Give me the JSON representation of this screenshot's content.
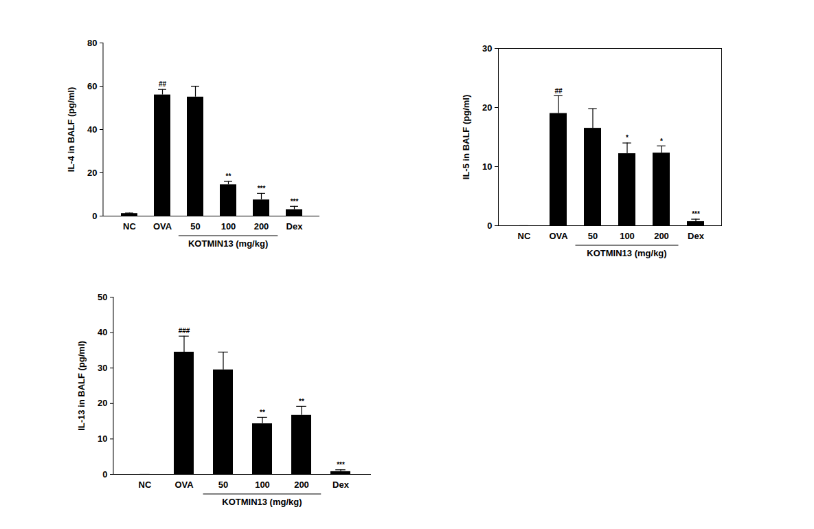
{
  "chart_data": [
    {
      "type": "bar",
      "y_label": "IL-4 in BALF (pg/ml)",
      "categories": [
        "NC",
        "OVA",
        "50",
        "100",
        "200",
        "Dex"
      ],
      "values": [
        1.2,
        56,
        55,
        14.5,
        7.5,
        3
      ],
      "errors": [
        0.2,
        2.5,
        5,
        1.5,
        3,
        1.5
      ],
      "significance": [
        null,
        "##",
        null,
        "**",
        "***",
        "***"
      ],
      "group": {
        "label": "KOTMIN13 (mg/kg)",
        "categories": [
          "50",
          "100",
          "200"
        ]
      },
      "color": "#000000",
      "ylim": [
        0,
        80
      ],
      "yticks": [
        0,
        20,
        40,
        60,
        80
      ]
    },
    {
      "type": "bar",
      "y_label": "IL-5 in BALF (pg/ml)",
      "categories": [
        "NC",
        "OVA",
        "50",
        "100",
        "200",
        "Dex"
      ],
      "values": [
        0,
        19,
        16.5,
        12.2,
        12.3,
        0.7
      ],
      "errors": [
        0,
        3,
        3.3,
        1.8,
        1.2,
        0.4
      ],
      "significance": [
        null,
        "##",
        null,
        "*",
        "*",
        "***"
      ],
      "group": {
        "label": "KOTMIN13 (mg/kg)",
        "categories": [
          "50",
          "100",
          "200"
        ]
      },
      "color": "#000000",
      "ylim": [
        0,
        30
      ],
      "yticks": [
        0,
        10,
        20,
        30
      ]
    },
    {
      "type": "bar",
      "y_label": "IL-13 in BALF (pg/ml)",
      "categories": [
        "NC",
        "OVA",
        "50",
        "100",
        "200",
        "Dex"
      ],
      "values": [
        0,
        34.5,
        29.5,
        14.3,
        16.7,
        0.8
      ],
      "errors": [
        0,
        4.5,
        5,
        1.8,
        2.5,
        0.5
      ],
      "significance": [
        null,
        "###",
        null,
        "**",
        "**",
        "***"
      ],
      "group": {
        "label": "KOTMIN13 (mg/kg)",
        "categories": [
          "50",
          "100",
          "200"
        ]
      },
      "color": "#000000",
      "ylim": [
        0,
        50
      ],
      "yticks": [
        0,
        10,
        20,
        30,
        40,
        50
      ]
    }
  ]
}
